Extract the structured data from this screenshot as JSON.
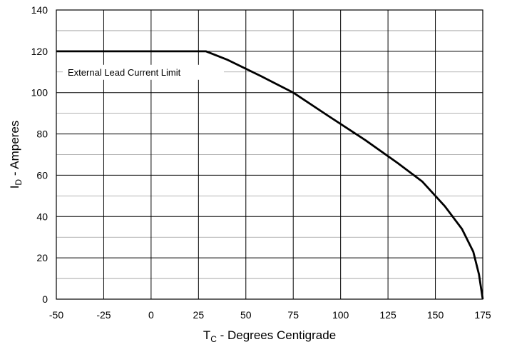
{
  "chart_data": {
    "type": "line",
    "xlabel_main": "T",
    "xlabel_sub": "C",
    "xlabel_rest": " - Degrees Centigrade",
    "ylabel_main": "I",
    "ylabel_sub": "D",
    "ylabel_rest": " - Amperes",
    "xlim": [
      -50,
      175
    ],
    "ylim": [
      0,
      140
    ],
    "x_ticks": [
      -50,
      -25,
      0,
      25,
      50,
      75,
      100,
      125,
      150,
      175
    ],
    "y_ticks": [
      0,
      20,
      40,
      60,
      80,
      100,
      120,
      140
    ],
    "grid": true,
    "annotation": "External Lead Current Limit",
    "series": [
      {
        "x": [
          -50,
          29,
          40,
          58,
          75,
          93,
          113,
          130,
          143,
          155,
          164,
          170,
          173,
          175
        ],
        "y": [
          120,
          120,
          116,
          108,
          100,
          89,
          77,
          66,
          57,
          45,
          34,
          23,
          12,
          0
        ]
      }
    ]
  }
}
